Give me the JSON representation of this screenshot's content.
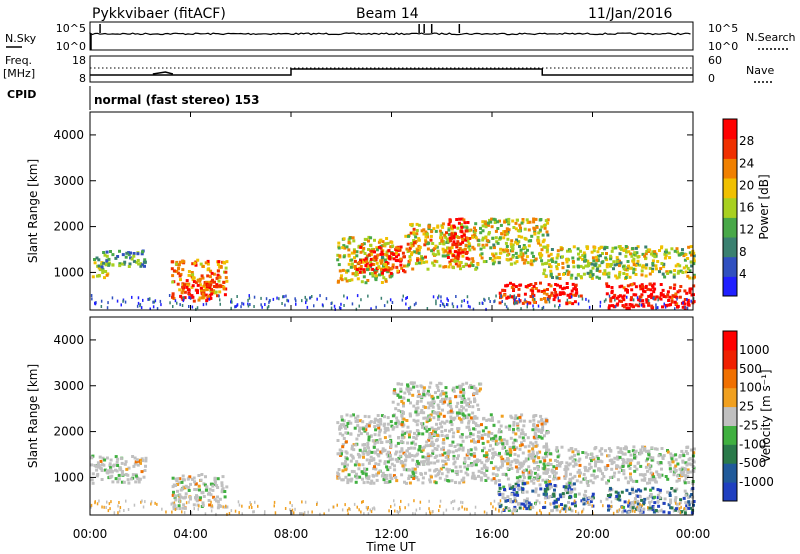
{
  "header": {
    "title": "Pykkvibaer (fitACF)",
    "beam": "Beam 14",
    "date": "11/Jan/2016"
  },
  "top_panel": {
    "left_label": "N.Sky",
    "right_label": "N.Search",
    "left_ticks": [
      "10^5",
      "10^0"
    ],
    "right_ticks": [
      "10^5",
      "10^0"
    ]
  },
  "freq_panel": {
    "left_label_line1": "Freq.",
    "left_label_line2": "[MHz]",
    "right_label": "Nave",
    "left_ticks": [
      "18",
      "8"
    ],
    "right_ticks": [
      "60",
      "0"
    ],
    "cpid_label": "CPID",
    "cpid_text": "normal (fast stereo) 153"
  },
  "x_axis": {
    "label": "Time UT",
    "ticks": [
      "00:00",
      "04:00",
      "08:00",
      "12:00",
      "16:00",
      "20:00",
      "00:00"
    ]
  },
  "power_colorbar": {
    "label": "Power [dB]",
    "ticks": [
      "4",
      "8",
      "12",
      "16",
      "20",
      "24",
      "28"
    ],
    "colors": [
      "#2020ff",
      "#3050c0",
      "#3a8070",
      "#48a848",
      "#a8d020",
      "#f0c000",
      "#f08000",
      "#f03000",
      "#ff0000"
    ]
  },
  "velocity_colorbar": {
    "label": "Velocity [m s⁻¹]",
    "ticks": [
      "1000",
      "500",
      "100",
      "25",
      "-25",
      "-100",
      "-500",
      "-1000"
    ],
    "colors": [
      "#2040c0",
      "#205a9a",
      "#2a7a4a",
      "#40b040",
      "#c0c0c0",
      "#f0a020",
      "#f07000",
      "#f02000",
      "#ff0000"
    ]
  },
  "chart_data": [
    {
      "type": "heatmap",
      "panel": "power",
      "ylabel": "Slant Range [km]",
      "xlabel": "",
      "ylim": [
        180,
        4500
      ],
      "xlim_hours": [
        0,
        24
      ],
      "yticks": [
        "1000",
        "2000",
        "3000",
        "4000"
      ],
      "colorbar": "Power [dB]",
      "blobs": [
        {
          "t0": 0.0,
          "t1": 0.7,
          "r0": 900,
          "r1": 1350,
          "level": 0.45
        },
        {
          "t0": 0.4,
          "t1": 2.2,
          "r0": 1150,
          "r1": 1500,
          "level": 0.35
        },
        {
          "t0": 3.2,
          "t1": 5.4,
          "r0": 450,
          "r1": 1300,
          "level": 0.75
        },
        {
          "t0": 3.6,
          "t1": 4.8,
          "r0": 400,
          "r1": 800,
          "level": 0.9
        },
        {
          "t0": 9.8,
          "t1": 12.0,
          "r0": 800,
          "r1": 1800,
          "level": 0.55
        },
        {
          "t0": 10.5,
          "t1": 12.5,
          "r0": 1000,
          "r1": 1600,
          "level": 0.85
        },
        {
          "t0": 12.5,
          "t1": 15.5,
          "r0": 1100,
          "r1": 2100,
          "level": 0.6
        },
        {
          "t0": 14.2,
          "t1": 15.0,
          "r0": 1300,
          "r1": 2200,
          "level": 0.95
        },
        {
          "t0": 15.5,
          "t1": 18.2,
          "r0": 1200,
          "r1": 2200,
          "level": 0.55
        },
        {
          "t0": 16.2,
          "t1": 19.5,
          "r0": 350,
          "r1": 800,
          "level": 0.9
        },
        {
          "t0": 18.0,
          "t1": 24.0,
          "r0": 900,
          "r1": 1600,
          "level": 0.5
        },
        {
          "t0": 20.5,
          "t1": 24.0,
          "r0": 250,
          "r1": 800,
          "level": 0.97
        }
      ]
    },
    {
      "type": "heatmap",
      "panel": "velocity",
      "ylabel": "Slant Range [km]",
      "xlabel": "Time UT",
      "ylim": [
        180,
        4500
      ],
      "xlim_hours": [
        0,
        24
      ],
      "yticks": [
        "1000",
        "2000",
        "3000",
        "4000"
      ],
      "colorbar": "Velocity [m s⁻¹]",
      "blobs": [
        {
          "t0": 0.0,
          "t1": 2.2,
          "r0": 900,
          "r1": 1500,
          "level": 0.45
        },
        {
          "t0": 3.2,
          "t1": 5.4,
          "r0": 350,
          "r1": 1100,
          "level": 0.62
        },
        {
          "t0": 9.8,
          "t1": 18.2,
          "r0": 900,
          "r1": 2400,
          "level": 0.45
        },
        {
          "t0": 12.0,
          "t1": 15.5,
          "r0": 2400,
          "r1": 3100,
          "level": 0.45
        },
        {
          "t0": 16.2,
          "t1": 20.0,
          "r0": 300,
          "r1": 900,
          "level": 0.12
        },
        {
          "t0": 18.0,
          "t1": 24.0,
          "r0": 900,
          "r1": 1700,
          "level": 0.45
        },
        {
          "t0": 20.5,
          "t1": 24.0,
          "r0": 250,
          "r1": 800,
          "level": 0.15
        }
      ]
    }
  ]
}
